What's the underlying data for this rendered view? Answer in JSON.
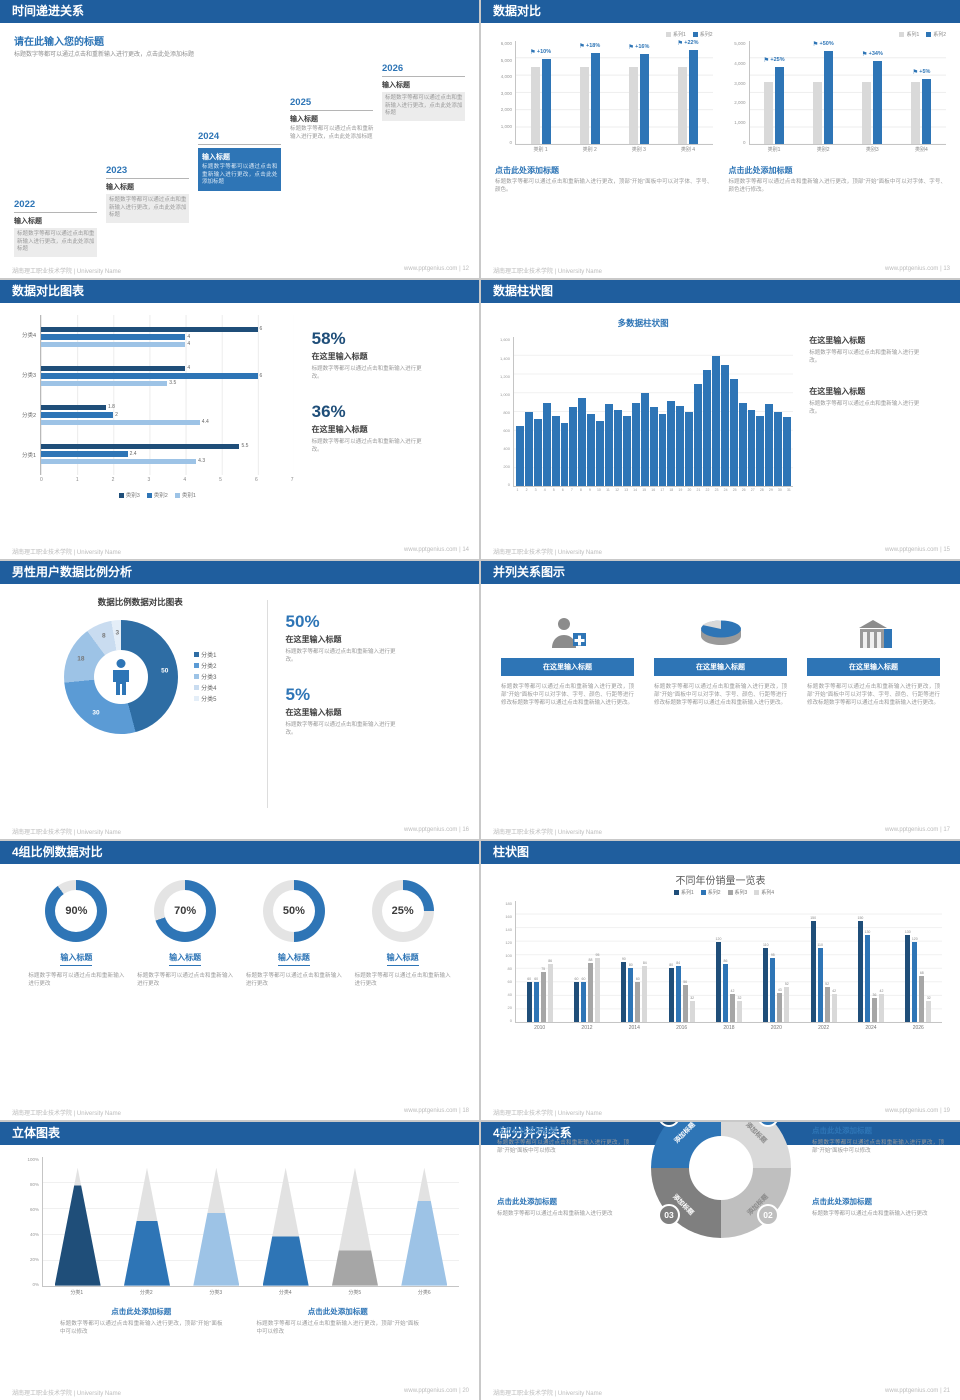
{
  "theme": {
    "header_blue": "#1f5e9e",
    "accent_blue": "#2e75b6",
    "dark_blue": "#1f4e79",
    "light_blue": "#9dc3e6",
    "gray_bar": "#d9d9d9"
  },
  "footer": {
    "org": "湖南理工职业技术学院 | University Name",
    "site": "www.pptgenius.com"
  },
  "slides": [
    {
      "title": "时间递进关系",
      "page": "12",
      "heading": "请在此输入您的标题",
      "subheading": "标题数字等都可以通过点击和重新输入进行更改，点击此处添加标题",
      "items": [
        {
          "year": "2022",
          "label": "输入标题",
          "body": "标题数字等都可以通过点击和重新输入进行更改，点击此处添加标题",
          "style": "box"
        },
        {
          "year": "2023",
          "label": "输入标题",
          "body": "标题数字等都可以通过点击和重新输入进行更改，点击此处添加标题",
          "style": "box"
        },
        {
          "year": "2024",
          "label": "输入标题",
          "body": "标题数字等都可以通过点击和重新输入进行更改，点击此处添加标题",
          "style": "filled"
        },
        {
          "year": "2025",
          "label": "输入标题",
          "body": "标题数字等都可以通过点击和重新输入进行更改，点击此处添加标题",
          "style": "plain"
        },
        {
          "year": "2026",
          "label": "输入标题",
          "body": "标题数字等都可以通过点击和重新输入进行更改，点击此处添加标题",
          "style": "box"
        }
      ]
    },
    {
      "title": "数据对比",
      "page": "13",
      "charts": [
        {
          "type": "bar",
          "categories": [
            "类别 1",
            "类别 2",
            "类别 3",
            "类别 4"
          ],
          "series": [
            {
              "name": "系列1",
              "color": "#d9d9d9",
              "values": [
                4500,
                4500,
                4500,
                4500
              ]
            },
            {
              "name": "系列2",
              "color": "#2e75b6",
              "values": [
                4950,
                5310,
                5220,
                5490
              ]
            }
          ],
          "percents": [
            "+10%",
            "+18%",
            "+16%",
            "+22%"
          ],
          "ymax": 6000,
          "yticks": [
            "6,000",
            "5,000",
            "4,000",
            "3,000",
            "2,000",
            "1,000",
            "0"
          ],
          "heading": "点击此处添加标题",
          "body": "标题数字等都可以通过点击和重新输入进行更改，顶部“开始”面板中可以对字体、字号、颜色。"
        },
        {
          "type": "bar",
          "categories": [
            "类别1",
            "类别2",
            "类别3",
            "类别4"
          ],
          "series": [
            {
              "name": "系列1",
              "color": "#d9d9d9",
              "values": [
                3000,
                3000,
                3000,
                3000
              ]
            },
            {
              "name": "系列2",
              "color": "#2e75b6",
              "values": [
                3750,
                4500,
                4020,
                3150
              ]
            }
          ],
          "percents": [
            "+25%",
            "+50%",
            "+34%",
            "+5%"
          ],
          "ymax": 5000,
          "yticks": [
            "5,000",
            "4,000",
            "3,000",
            "2,000",
            "1,000",
            "0"
          ],
          "heading": "点击此处添加标题",
          "body": "标题数字等都可以通过点击和重新输入进行更改，顶部“开始”面板中可以对字体、字号、颜色进行修改。"
        }
      ]
    },
    {
      "title": "数据对比图表",
      "page": "14",
      "chart": {
        "type": "bar-horizontal",
        "categories": [
          "分类4",
          "分类3",
          "分类2",
          "分类1"
        ],
        "series": [
          {
            "name": "类别3",
            "color": "#1f4e79",
            "values": [
              6,
              4,
              1.8,
              5.5
            ]
          },
          {
            "name": "类别2",
            "color": "#2e75b6",
            "values": [
              4,
              6,
              2,
              2.4
            ]
          },
          {
            "name": "类别1",
            "color": "#9dc3e6",
            "values": [
              4,
              3.5,
              4.4,
              4.3
            ]
          }
        ],
        "xmax": 7,
        "xticks": [
          "0",
          "1",
          "2",
          "3",
          "4",
          "5",
          "6",
          "7"
        ]
      },
      "stats": [
        {
          "pct": "58%",
          "label": "在这里输入标题",
          "body": "标题数字等都可以通过点击和重新输入进行更改。"
        },
        {
          "pct": "36%",
          "label": "在这里输入标题",
          "body": "标题数字等都可以通过点击和重新输入进行更改。"
        }
      ]
    },
    {
      "title": "数据柱状图",
      "page": "15",
      "chart": {
        "type": "bar",
        "title": "多数据柱状图",
        "color": "#2e75b6",
        "x": [
          "1",
          "2",
          "3",
          "4",
          "5",
          "6",
          "7",
          "8",
          "9",
          "10",
          "11",
          "12",
          "13",
          "14",
          "15",
          "16",
          "17",
          "18",
          "19",
          "20",
          "21",
          "22",
          "23",
          "24",
          "25",
          "26",
          "27",
          "28",
          "29",
          "30",
          "31"
        ],
        "values": [
          650,
          800,
          720,
          900,
          760,
          680,
          850,
          950,
          780,
          700,
          880,
          820,
          760,
          900,
          1000,
          850,
          780,
          920,
          860,
          800,
          1100,
          1250,
          1400,
          1300,
          1150,
          900,
          820,
          760,
          880,
          800,
          750
        ],
        "ymax": 1600,
        "yticks": [
          "1,600",
          "1,400",
          "1,200",
          "1,000",
          "800",
          "600",
          "400",
          "200",
          "0"
        ]
      },
      "stats": [
        {
          "label": "在这里输入标题",
          "body": "标题数字等都可以通过点击和重新输入进行更改。"
        },
        {
          "label": "在这里输入标题",
          "body": "标题数字等都可以通过点击和重新输入进行更改。"
        }
      ]
    },
    {
      "title": "男性用户数据比例分析",
      "page": "16",
      "chart_title": "数据比例数据对比图表",
      "donut": {
        "type": "pie",
        "legend": [
          "分类1",
          "分类2",
          "分类3",
          "分类4",
          "分类5"
        ],
        "values": [
          50,
          30,
          18,
          8,
          3
        ],
        "colors": [
          "#2e6da4",
          "#5b9bd5",
          "#9dc3e6",
          "#c9dcf0",
          "#e4eef8"
        ]
      },
      "stats": [
        {
          "pct": "50%",
          "label": "在这里输入标题",
          "body": "标题数字等都可以通过点击和重新输入进行更改。"
        },
        {
          "pct": "5%",
          "label": "在这里输入标题",
          "body": "标题数字等都可以通过点击和重新输入进行更改。"
        }
      ]
    },
    {
      "title": "并列关系图示",
      "page": "17",
      "columns": [
        {
          "icon": "medical-person-icon",
          "button": "在这里输入标题",
          "body": "标题数字等都可以通过点击和重新输入进行更改，顶部“开始”面板中可以对字体、字号、颜色、行距等进行修改标题数字等都可以通过点击和重新输入进行更改。"
        },
        {
          "icon": "pie-3d-icon",
          "button": "在这里输入标题",
          "body": "标题数字等都可以通过点击和重新输入进行更改，顶部“开始”面板中可以对字体、字号、颜色、行距等进行修改标题数字等都可以通过点击和重新输入进行更改。"
        },
        {
          "icon": "building-icon",
          "button": "在这里输入标题",
          "body": "标题数字等都可以通过点击和重新输入进行更改，顶部“开始”面板中可以对字体、字号、颜色、行距等进行修改标题数字等都可以通过点击和重新输入进行更改。"
        }
      ]
    },
    {
      "title": "4组比例数据对比",
      "page": "18",
      "rings": [
        {
          "pct": 90,
          "pct_label": "90%",
          "label": "输入标题",
          "body": "标题数字等都可以通过点击和重新输入进行更改"
        },
        {
          "pct": 70,
          "pct_label": "70%",
          "label": "输入标题",
          "body": "标题数字等都可以通过点击和重新输入进行更改"
        },
        {
          "pct": 50,
          "pct_label": "50%",
          "label": "输入标题",
          "body": "标题数字等都可以通过点击和重新输入进行更改"
        },
        {
          "pct": 25,
          "pct_label": "25%",
          "label": "输入标题",
          "body": "标题数字等都可以通过点击和重新输入进行更改"
        }
      ]
    },
    {
      "title": "柱状图",
      "page": "19",
      "chart": {
        "type": "bar",
        "title": "不同年份销量一览表",
        "categories": [
          "2010",
          "2012",
          "2014",
          "2016",
          "2018",
          "2020",
          "2022",
          "2024",
          "2026"
        ],
        "series": [
          {
            "name": "系列1",
            "color": "#1f4e79",
            "values": [
              60,
              60,
              90,
              80,
              120,
              110,
              150,
              150,
              130
            ]
          },
          {
            "name": "系列2",
            "color": "#2e75b6",
            "values": [
              60,
              60,
              80,
              84,
              86,
              95,
              110,
              130,
              120
            ]
          },
          {
            "name": "系列3",
            "color": "#a6a6a6",
            "values": [
              75,
              88,
              60,
              56,
              42,
              43,
              52,
              36,
              68
            ]
          },
          {
            "name": "系列4",
            "color": "#d9d9d9",
            "values": [
              86,
              95,
              84,
              32,
              32,
              52,
              42,
              42,
              32
            ]
          }
        ],
        "ymax": 180,
        "yticks": [
          "180",
          "160",
          "140",
          "120",
          "100",
          "80",
          "60",
          "40",
          "20",
          "0"
        ]
      }
    },
    {
      "title": "立体图表",
      "page": "20",
      "chart": {
        "type": "cone",
        "categories": [
          "分类1",
          "分类2",
          "分类3",
          "分类4",
          "分类5",
          "分类6"
        ],
        "fills": [
          85,
          55,
          62,
          42,
          30,
          72
        ],
        "colors": [
          "#1f4e79",
          "#2e75b6",
          "#9dc3e6",
          "#2e75b6",
          "#a6a6a6",
          "#9dc3e6"
        ],
        "yticks": [
          "100%",
          "80%",
          "60%",
          "40%",
          "20%",
          "0%"
        ]
      },
      "blocks": [
        {
          "heading": "点击此处添加标题",
          "body": "标题数字等都可以通过点击和重新输入进行更改，顶部“开始”面板中可以修改"
        },
        {
          "heading": "点击此处添加标题",
          "body": "标题数字等都可以通过点击和重新输入进行更改，顶部“开始”面板中可以修改"
        }
      ]
    },
    {
      "title": "4部分并列关系",
      "page": "21",
      "segments": [
        {
          "num": "01",
          "label": "添加标题",
          "color": "#d9d9d9",
          "badge": "#2e75b6",
          "angle": 45
        },
        {
          "num": "02",
          "label": "添加标题",
          "color": "#bfbfbf",
          "badge": "#bfbfbf",
          "angle": 135
        },
        {
          "num": "03",
          "label": "添加标题",
          "color": "#7f7f7f",
          "badge": "#7f7f7f",
          "angle": 225
        },
        {
          "num": "04",
          "label": "添加标题",
          "color": "#2e75b6",
          "badge": "#1f4e79",
          "angle": 315
        }
      ],
      "blocks": [
        {
          "heading": "点击此处添加标题",
          "body": "标题数字等都可以通过点击和重新输入进行更改"
        },
        {
          "heading": "点击此处添加标题",
          "body": "标题数字等都可以通过点击和重新输入进行更改"
        },
        {
          "heading": "点击此处添加标题",
          "body": "标题数字等都可以通过点击和重新输入进行更改，顶部“开始”面板中可以修改"
        },
        {
          "heading": "点击此处添加标题",
          "body": "标题数字等都可以通过点击和重新输入进行更改，顶部“开始”面板中可以修改"
        }
      ]
    }
  ]
}
